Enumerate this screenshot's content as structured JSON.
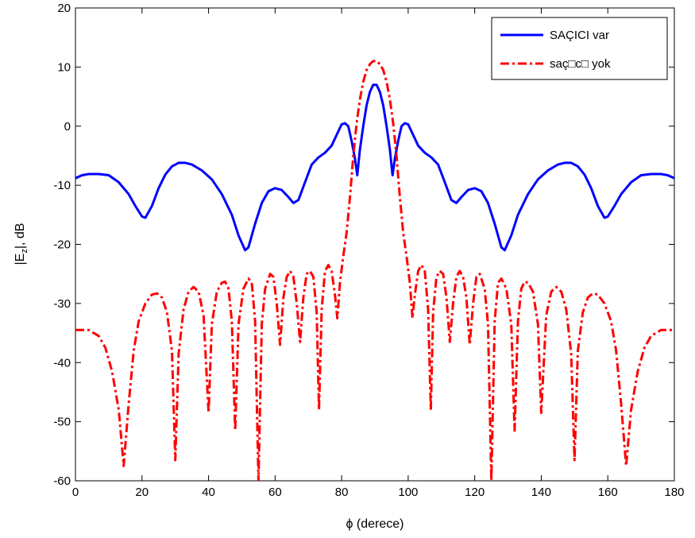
{
  "chart_data": {
    "type": "line",
    "xlabel": "ϕ (derece)",
    "ylabel_main": "|E",
    "ylabel_sub": "z",
    "ylabel_tail": "|, dB",
    "xlim": [
      0,
      180
    ],
    "ylim": [
      -60,
      20
    ],
    "xticks": [
      0,
      20,
      40,
      60,
      80,
      100,
      120,
      140,
      160,
      180
    ],
    "yticks": [
      20,
      10,
      0,
      -10,
      -20,
      -30,
      -40,
      -50,
      -60
    ],
    "grid": false,
    "legend_position": "top-right",
    "series": [
      {
        "name": "SAÇICI var",
        "color": "#0000ff",
        "style": "solid",
        "points": [
          [
            0,
            -8.8
          ],
          [
            2,
            -8.3
          ],
          [
            4,
            -8.1
          ],
          [
            7,
            -8.1
          ],
          [
            10,
            -8.3
          ],
          [
            13,
            -9.5
          ],
          [
            16,
            -11.5
          ],
          [
            18,
            -13.5
          ],
          [
            20,
            -15.3
          ],
          [
            21,
            -15.5
          ],
          [
            23,
            -13.5
          ],
          [
            25,
            -10.5
          ],
          [
            27,
            -8.2
          ],
          [
            29,
            -6.8
          ],
          [
            31,
            -6.2
          ],
          [
            33,
            -6.2
          ],
          [
            35,
            -6.5
          ],
          [
            38,
            -7.5
          ],
          [
            41,
            -9.0
          ],
          [
            44,
            -11.5
          ],
          [
            47,
            -15.0
          ],
          [
            49,
            -18.5
          ],
          [
            51,
            -21.0
          ],
          [
            52,
            -20.5
          ],
          [
            54,
            -16.5
          ],
          [
            56,
            -13.0
          ],
          [
            58,
            -11.0
          ],
          [
            60,
            -10.5
          ],
          [
            62,
            -10.8
          ],
          [
            64,
            -12.0
          ],
          [
            65.5,
            -13.0
          ],
          [
            67,
            -12.5
          ],
          [
            69,
            -9.5
          ],
          [
            71,
            -6.5
          ],
          [
            73,
            -5.3
          ],
          [
            75,
            -4.5
          ],
          [
            77,
            -3.3
          ],
          [
            78.5,
            -1.5
          ],
          [
            80,
            0.3
          ],
          [
            81,
            0.5
          ],
          [
            82,
            0.0
          ],
          [
            83,
            -2.5
          ],
          [
            84,
            -5.5
          ],
          [
            84.7,
            -8.3
          ],
          [
            85.5,
            -4.0
          ],
          [
            86.5,
            0.0
          ],
          [
            87.5,
            3.5
          ],
          [
            88.5,
            5.8
          ],
          [
            89.5,
            7.0
          ],
          [
            90.5,
            7.0
          ],
          [
            91.5,
            5.8
          ],
          [
            92.5,
            3.5
          ],
          [
            93.5,
            0.0
          ],
          [
            94.5,
            -4.0
          ],
          [
            95.3,
            -8.3
          ],
          [
            96,
            -5.5
          ],
          [
            97,
            -2.5
          ],
          [
            98,
            0.0
          ],
          [
            99,
            0.5
          ],
          [
            100,
            0.3
          ],
          [
            101.5,
            -1.5
          ],
          [
            103,
            -3.3
          ],
          [
            105,
            -4.5
          ],
          [
            107,
            -5.3
          ],
          [
            109,
            -6.5
          ],
          [
            111,
            -9.5
          ],
          [
            113,
            -12.5
          ],
          [
            114.5,
            -13.0
          ],
          [
            116,
            -12.0
          ],
          [
            118,
            -10.8
          ],
          [
            120,
            -10.5
          ],
          [
            122,
            -11.0
          ],
          [
            124,
            -13.0
          ],
          [
            126,
            -16.5
          ],
          [
            128,
            -20.5
          ],
          [
            129,
            -21.0
          ],
          [
            131,
            -18.5
          ],
          [
            133,
            -15.0
          ],
          [
            136,
            -11.5
          ],
          [
            139,
            -9.0
          ],
          [
            142,
            -7.5
          ],
          [
            145,
            -6.5
          ],
          [
            147,
            -6.2
          ],
          [
            149,
            -6.2
          ],
          [
            151,
            -6.8
          ],
          [
            153,
            -8.2
          ],
          [
            155,
            -10.5
          ],
          [
            157,
            -13.5
          ],
          [
            159,
            -15.5
          ],
          [
            160,
            -15.3
          ],
          [
            162,
            -13.5
          ],
          [
            164,
            -11.5
          ],
          [
            167,
            -9.5
          ],
          [
            170,
            -8.3
          ],
          [
            173,
            -8.1
          ],
          [
            176,
            -8.1
          ],
          [
            178,
            -8.3
          ],
          [
            180,
            -8.8
          ]
        ]
      },
      {
        "name": "saç□c□ yok",
        "color": "#ff0000",
        "style": "dashdot",
        "points": [
          [
            0,
            -34.5
          ],
          [
            4,
            -34.5
          ],
          [
            7,
            -35.5
          ],
          [
            9,
            -37.5
          ],
          [
            11,
            -41.5
          ],
          [
            13,
            -48.0
          ],
          [
            14.5,
            -57.5
          ],
          [
            16,
            -47.0
          ],
          [
            17.5,
            -38.0
          ],
          [
            19,
            -33.0
          ],
          [
            21,
            -30.0
          ],
          [
            23,
            -28.5
          ],
          [
            24.5,
            -28.3
          ],
          [
            26,
            -29.0
          ],
          [
            27.5,
            -31.5
          ],
          [
            29,
            -38.0
          ],
          [
            30,
            -56.5
          ],
          [
            31,
            -38.5
          ],
          [
            32.5,
            -31.0
          ],
          [
            34,
            -28.0
          ],
          [
            35.5,
            -27.2
          ],
          [
            37,
            -28.0
          ],
          [
            38.5,
            -32.0
          ],
          [
            40,
            -48.5
          ],
          [
            41,
            -33.5
          ],
          [
            42.5,
            -28.0
          ],
          [
            44,
            -26.5
          ],
          [
            45,
            -26.3
          ],
          [
            46,
            -27.5
          ],
          [
            47,
            -33.0
          ],
          [
            48,
            -51.5
          ],
          [
            49,
            -33.5
          ],
          [
            50.5,
            -27.5
          ],
          [
            52,
            -25.8
          ],
          [
            53,
            -26.5
          ],
          [
            54,
            -33.0
          ],
          [
            55,
            -60.0
          ],
          [
            56,
            -33.5
          ],
          [
            57,
            -27.5
          ],
          [
            58.5,
            -25.0
          ],
          [
            59.5,
            -25.5
          ],
          [
            60.5,
            -30.0
          ],
          [
            61.5,
            -37.0
          ],
          [
            62.5,
            -29.0
          ],
          [
            63.5,
            -25.5
          ],
          [
            64.5,
            -24.5
          ],
          [
            65.5,
            -25.5
          ],
          [
            66.5,
            -30.0
          ],
          [
            67.5,
            -36.5
          ],
          [
            68.5,
            -29.0
          ],
          [
            69.5,
            -25.0
          ],
          [
            70.5,
            -24.5
          ],
          [
            71.5,
            -25.5
          ],
          [
            72.5,
            -31.5
          ],
          [
            73.2,
            -48.0
          ],
          [
            74,
            -31.0
          ],
          [
            75,
            -24.5
          ],
          [
            76,
            -23.5
          ],
          [
            77,
            -24.5
          ],
          [
            78,
            -28.5
          ],
          [
            78.7,
            -32.5
          ],
          [
            79.5,
            -26.5
          ],
          [
            80.5,
            -22.0
          ],
          [
            81.5,
            -18.0
          ],
          [
            82.5,
            -12.0
          ],
          [
            83.5,
            -5.0
          ],
          [
            84.5,
            0.5
          ],
          [
            85.5,
            4.5
          ],
          [
            86.5,
            7.5
          ],
          [
            87.5,
            9.5
          ],
          [
            88.5,
            10.5
          ],
          [
            89.5,
            11.0
          ],
          [
            90.5,
            11.0
          ],
          [
            91.5,
            10.5
          ],
          [
            92.5,
            9.5
          ],
          [
            93.5,
            7.5
          ],
          [
            94.5,
            4.5
          ],
          [
            95.5,
            0.5
          ],
          [
            96.5,
            -5.0
          ],
          [
            97.5,
            -12.0
          ],
          [
            98.5,
            -18.0
          ],
          [
            99.5,
            -22.0
          ],
          [
            100.5,
            -26.5
          ],
          [
            101.3,
            -32.5
          ],
          [
            102,
            -28.5
          ],
          [
            103,
            -24.5
          ],
          [
            104,
            -23.5
          ],
          [
            105,
            -24.5
          ],
          [
            106,
            -31.0
          ],
          [
            106.8,
            -48.0
          ],
          [
            107.5,
            -31.5
          ],
          [
            108.5,
            -25.5
          ],
          [
            109.5,
            -24.5
          ],
          [
            110.5,
            -25.0
          ],
          [
            111.5,
            -29.0
          ],
          [
            112.5,
            -36.5
          ],
          [
            113.5,
            -30.0
          ],
          [
            114.5,
            -25.5
          ],
          [
            115.5,
            -24.5
          ],
          [
            116.5,
            -25.5
          ],
          [
            117.5,
            -29.0
          ],
          [
            118.5,
            -37.0
          ],
          [
            119.5,
            -30.0
          ],
          [
            120.5,
            -25.5
          ],
          [
            121.5,
            -25.0
          ],
          [
            123,
            -27.5
          ],
          [
            124,
            -33.5
          ],
          [
            125,
            -60.0
          ],
          [
            126,
            -33.0
          ],
          [
            127,
            -26.5
          ],
          [
            128,
            -25.8
          ],
          [
            129.5,
            -27.5
          ],
          [
            131,
            -33.5
          ],
          [
            132,
            -51.5
          ],
          [
            133,
            -33.0
          ],
          [
            134,
            -27.5
          ],
          [
            135,
            -26.3
          ],
          [
            136,
            -26.5
          ],
          [
            137.5,
            -28.0
          ],
          [
            139,
            -33.5
          ],
          [
            140,
            -48.5
          ],
          [
            141.5,
            -32.0
          ],
          [
            143,
            -28.0
          ],
          [
            144.5,
            -27.2
          ],
          [
            146,
            -28.0
          ],
          [
            147.5,
            -31.0
          ],
          [
            149,
            -38.5
          ],
          [
            150,
            -56.5
          ],
          [
            151,
            -38.0
          ],
          [
            152.5,
            -31.5
          ],
          [
            154,
            -29.0
          ],
          [
            155.5,
            -28.3
          ],
          [
            157,
            -28.5
          ],
          [
            159,
            -30.0
          ],
          [
            161,
            -33.0
          ],
          [
            162.5,
            -38.0
          ],
          [
            164,
            -47.0
          ],
          [
            165.5,
            -57.5
          ],
          [
            167,
            -48.0
          ],
          [
            169,
            -41.5
          ],
          [
            171,
            -37.5
          ],
          [
            173,
            -35.5
          ],
          [
            176,
            -34.5
          ],
          [
            180,
            -34.5
          ]
        ]
      }
    ]
  }
}
